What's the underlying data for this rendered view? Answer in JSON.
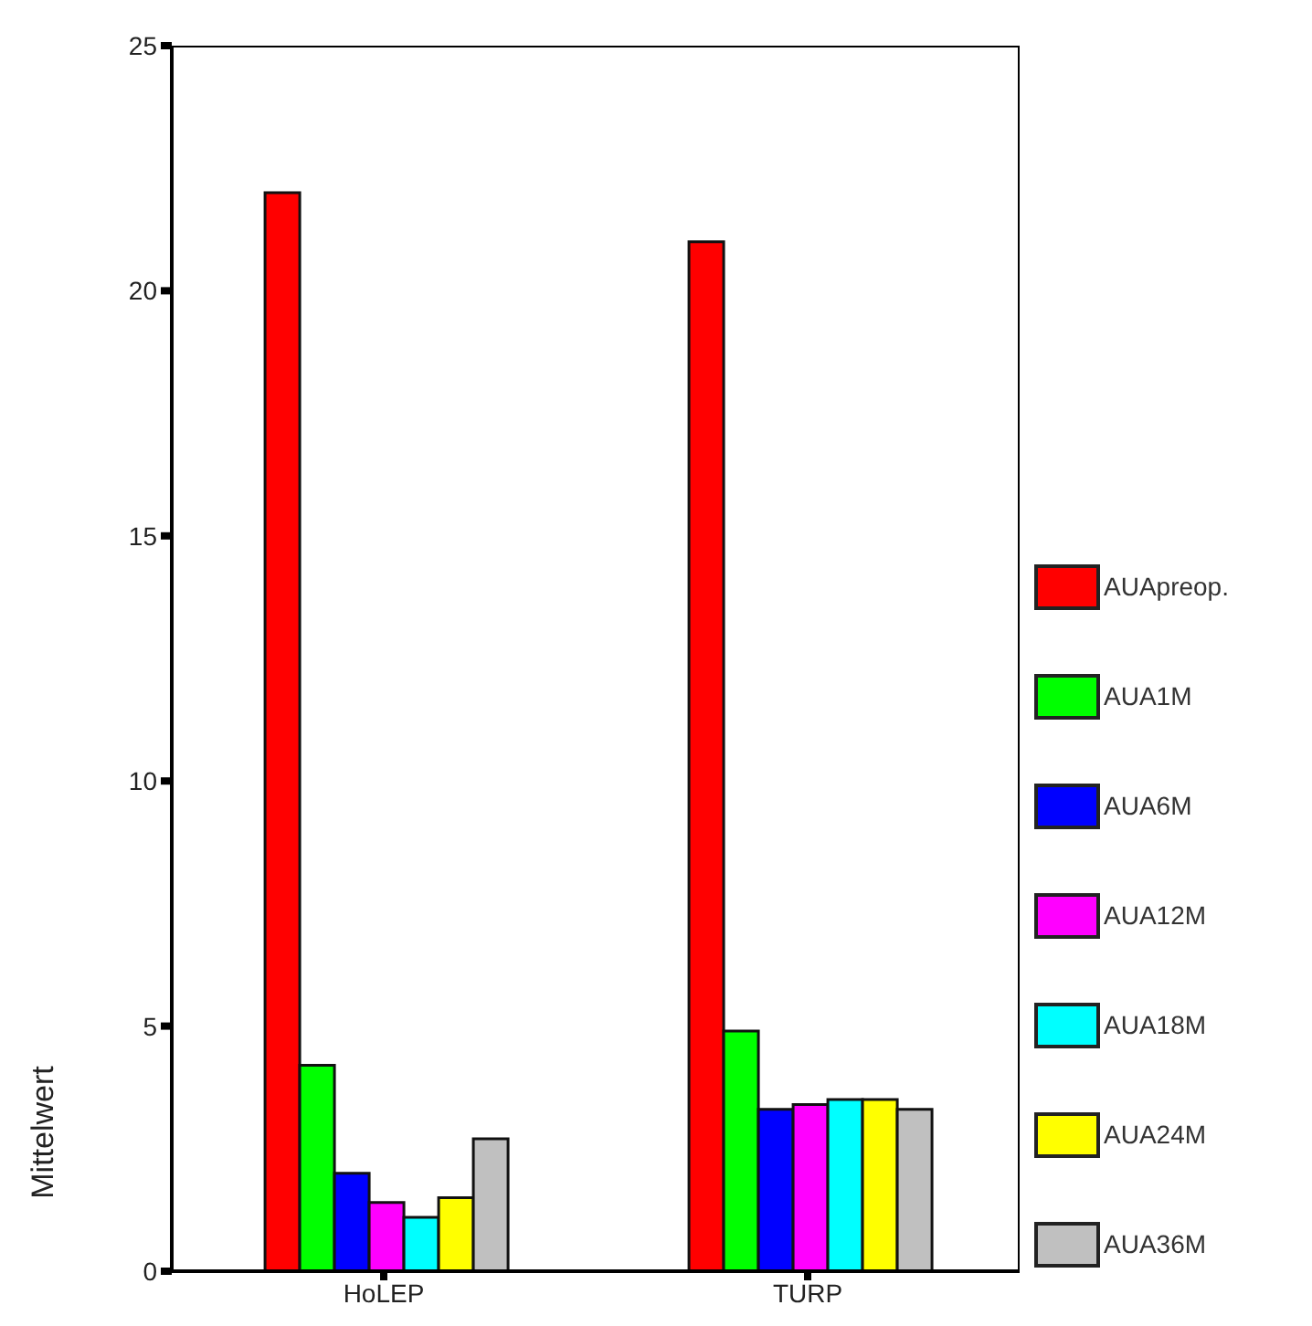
{
  "chart_data": {
    "type": "bar",
    "ylabel": "Mittelwert",
    "categories": [
      "HoLEP",
      "TURP"
    ],
    "series": [
      {
        "name": "AUApreop.",
        "color": "#ff0000",
        "values": [
          22.0,
          21.0
        ]
      },
      {
        "name": "AUA1M",
        "color": "#00ff00",
        "values": [
          4.2,
          4.9
        ]
      },
      {
        "name": "AUA6M",
        "color": "#0000ff",
        "values": [
          2.0,
          3.3
        ]
      },
      {
        "name": "AUA12M",
        "color": "#ff00ff",
        "values": [
          1.4,
          3.4
        ]
      },
      {
        "name": "AUA18M",
        "color": "#00ffff",
        "values": [
          1.1,
          3.5
        ]
      },
      {
        "name": "AUA24M",
        "color": "#ffff00",
        "values": [
          1.5,
          3.5
        ]
      },
      {
        "name": "AUA36M",
        "color": "#c0c0c0",
        "values": [
          2.7,
          3.3
        ]
      }
    ],
    "ylim": [
      0,
      25
    ],
    "yticks": [
      0,
      5,
      10,
      15,
      20,
      25
    ],
    "grid": false,
    "legend": "right"
  }
}
